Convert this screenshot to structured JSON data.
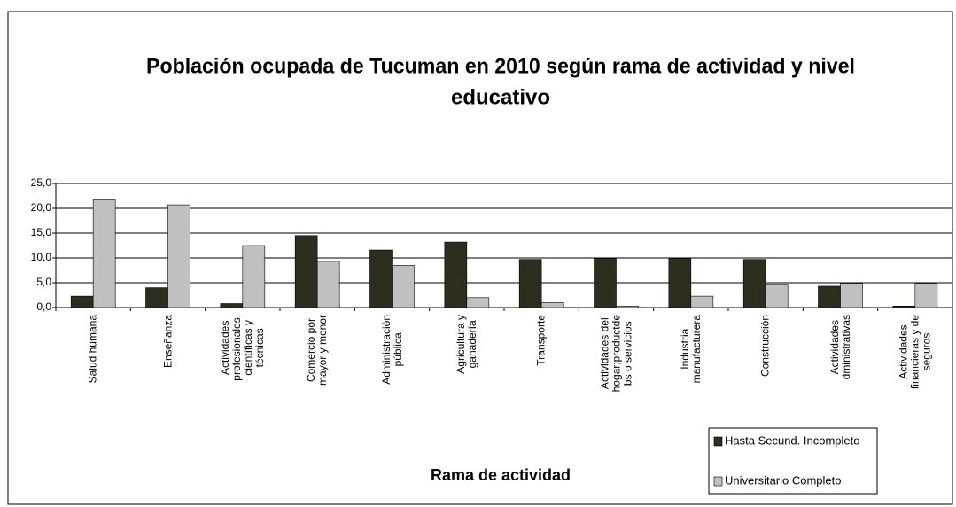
{
  "chart_data": {
    "type": "bar",
    "title": "Población ocupada de Tucuman en 2010 según rama de actividad y nivel",
    "title_line2": "educativo",
    "x_label": "Rama de actividad",
    "categories": [
      "Salud humana",
      "Enseñanza",
      "Actividades\nprofesionales,\ncientíficas y\ntécnicas",
      "Comercio por\nmayor y menor",
      "Administración\npública",
      "Agricultura y\nganadería",
      "Transporte",
      "Actividades del\nhogar;productde\nbs o servicios",
      "Industria\nmanufacturera",
      "Construcción",
      "Actividades\ndministrativas",
      "Actividades\nfinancieras y de\nseguros"
    ],
    "series": [
      {
        "name": "Hasta Secund. Incompleto",
        "color": "#2e2e1e",
        "values": [
          2.3,
          4.0,
          0.8,
          14.5,
          11.6,
          13.2,
          9.7,
          9.9,
          9.9,
          9.7,
          4.3,
          0.3
        ]
      },
      {
        "name": "Universitario Completo",
        "color": "#c0c0c0",
        "values": [
          21.7,
          20.7,
          12.5,
          9.3,
          8.5,
          2.0,
          1.0,
          0.3,
          2.3,
          4.7,
          4.9,
          4.9
        ]
      }
    ],
    "ylim": [
      0,
      25
    ],
    "yticks": [
      {
        "value": 0,
        "label": "0,0"
      },
      {
        "value": 5,
        "label": "5,0"
      },
      {
        "value": 10,
        "label": "10,0"
      },
      {
        "value": 15,
        "label": "15,0"
      },
      {
        "value": 20,
        "label": "20,0"
      },
      {
        "value": 25,
        "label": "25,0"
      }
    ],
    "grid": true
  }
}
